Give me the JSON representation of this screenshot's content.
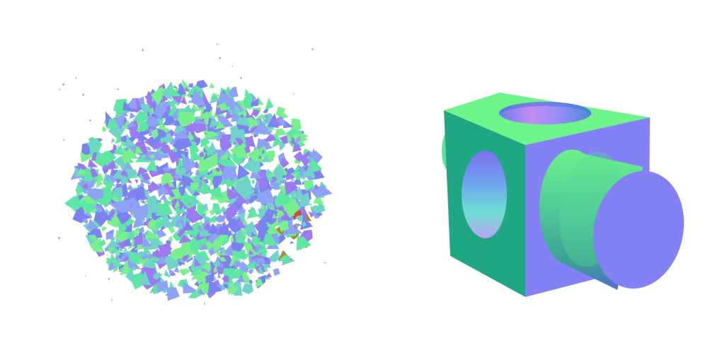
{
  "scene": {
    "background": "#ffffff",
    "left_panel": {
      "object": "noisy-reconstruction-blob",
      "palette": [
        "#7b83f3",
        "#8ea2f7",
        "#6fd3c9",
        "#5ee6a3",
        "#78f08e",
        "#9b7af2",
        "#4fa3a8",
        "#b08a2c",
        "#d14a3a",
        "#6a8fe0"
      ]
    },
    "right_panel": {
      "object": "cube-with-cylindrical-holes-and-peg",
      "colors": {
        "cube_top": "#6ef58a",
        "cube_left": "#1fa784",
        "cube_front": "#8282f5",
        "hole_rim_top": "#5b7ee8",
        "hole_inner": "#9fa0f3",
        "cylinder_side_light": "#6cf08c",
        "cylinder_side_dark": "#2f8f8c",
        "cylinder_cap": "#8282f5"
      }
    }
  }
}
